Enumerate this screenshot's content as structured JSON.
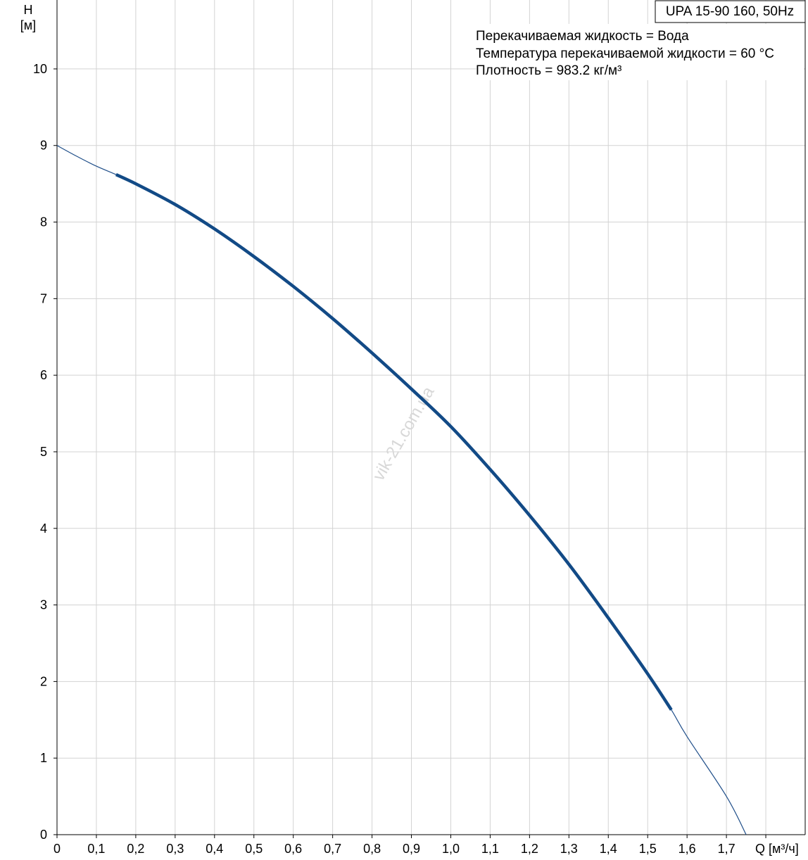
{
  "chart_data": {
    "type": "line",
    "model_label": "UPA 15-90 160, 50Hz",
    "info_lines": [
      "Перекачиваемая жидкость = Вода",
      "Температура перекачиваемой жидкости = 60 °C",
      "Плотность = 983.2 кг/м³"
    ],
    "ylabel": "H",
    "yunit": "[м]",
    "xlabel": "Q [м³/ч]",
    "watermark": "vik-21.com.ua",
    "xlim": [
      0,
      1.9
    ],
    "ylim": [
      0,
      10.9
    ],
    "x_ticks": [
      0,
      0.1,
      0.2,
      0.3,
      0.4,
      0.5,
      0.6,
      0.7,
      0.8,
      0.9,
      1.0,
      1.1,
      1.2,
      1.3,
      1.4,
      1.5,
      1.6,
      1.7
    ],
    "x_tick_labels": [
      "0",
      "0,1",
      "0,2",
      "0,3",
      "0,4",
      "0,5",
      "0,6",
      "0,7",
      "0,8",
      "0,9",
      "1,0",
      "1,1",
      "1,2",
      "1,3",
      "1,4",
      "1,5",
      "1,6",
      "1,7"
    ],
    "y_ticks": [
      0,
      1,
      2,
      3,
      4,
      5,
      6,
      7,
      8,
      9,
      10
    ],
    "y_tick_labels": [
      "0",
      "1",
      "2",
      "3",
      "4",
      "5",
      "6",
      "7",
      "8",
      "9",
      "10"
    ],
    "grid": true,
    "series": [
      {
        "style": "thin",
        "color": "#1f4e89",
        "x": [
          0,
          0.05,
          0.1,
          0.15,
          0.2,
          0.3,
          0.4,
          0.5,
          0.6,
          0.7,
          0.8,
          0.9,
          1.0,
          1.1,
          1.2,
          1.3,
          1.4,
          1.5,
          1.56,
          1.6,
          1.7,
          1.75
        ],
        "y": [
          9.0,
          8.86,
          8.73,
          8.62,
          8.5,
          8.23,
          7.91,
          7.55,
          7.16,
          6.74,
          6.29,
          5.82,
          5.33,
          4.77,
          4.17,
          3.53,
          2.83,
          2.1,
          1.63,
          1.28,
          0.5,
          0.0
        ]
      },
      {
        "style": "thick",
        "color": "#124a86",
        "x": [
          0.15,
          0.2,
          0.3,
          0.4,
          0.5,
          0.6,
          0.7,
          0.8,
          0.9,
          1.0,
          1.1,
          1.2,
          1.3,
          1.4,
          1.5,
          1.56
        ],
        "y": [
          8.62,
          8.5,
          8.23,
          7.91,
          7.55,
          7.16,
          6.74,
          6.29,
          5.82,
          5.33,
          4.77,
          4.17,
          3.53,
          2.83,
          2.1,
          1.63
        ]
      }
    ]
  }
}
